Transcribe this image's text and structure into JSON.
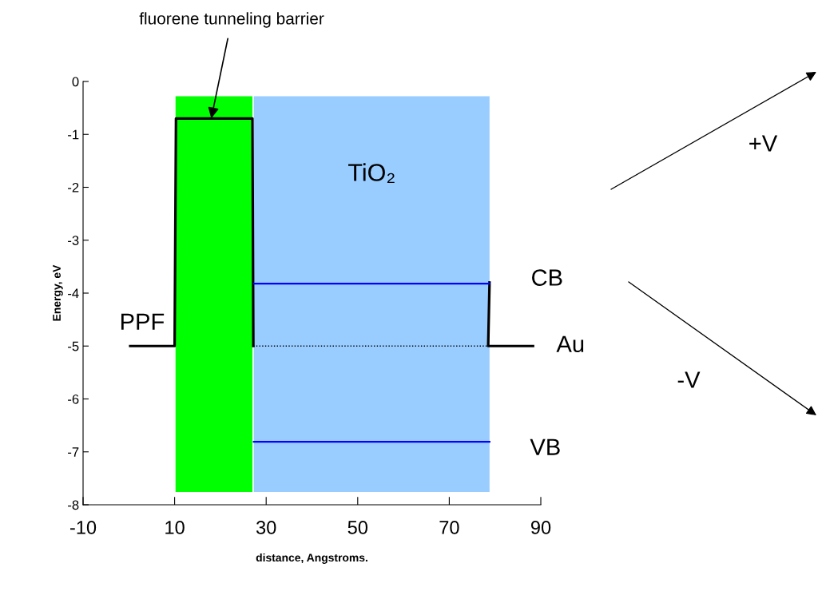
{
  "chart_data": {
    "type": "line",
    "xlabel": "distance, Angstroms.",
    "ylabel": "Energy, eV",
    "xlim": [
      -10,
      90
    ],
    "xticks": [
      -10,
      10,
      30,
      50,
      70,
      90
    ],
    "ylim": [
      -8,
      0
    ],
    "yticks": [
      -8,
      -7,
      -6,
      -5,
      -4,
      -3,
      -2,
      -1,
      0
    ],
    "grid": false,
    "legend": false,
    "marker": "none",
    "series": [
      {
        "color": "#000000",
        "x": [
          0.3,
          10,
          10.3,
          27,
          27.2
        ],
        "values": [
          -5,
          -5,
          -0.7,
          -0.7,
          -5
        ],
        "line_style": "solid"
      },
      {
        "color": "#000000",
        "x": [
          78.8,
          78.5,
          88.3
        ],
        "values": [
          -3.8,
          -5,
          -5
        ],
        "line_style": "solid"
      },
      {
        "color": "#000000",
        "x": [
          27.2,
          78.5
        ],
        "values": [
          -5,
          -5
        ],
        "line_style": "dotted"
      },
      {
        "color": "#0000ff",
        "x": [
          27.3,
          78.8
        ],
        "values": [
          -3.82,
          -3.82
        ],
        "line_style": "solid"
      },
      {
        "color": "#0000ff",
        "x": [
          27.3,
          78.8
        ],
        "values": [
          -6.81,
          -6.81
        ],
        "line_style": "solid"
      }
    ],
    "bands": [
      {
        "axis": "x",
        "from": 10.2,
        "to": 27.0,
        "color": "#00ff00"
      },
      {
        "axis": "x",
        "from": 27.3,
        "to": 78.8,
        "color": "#99ccff",
        "label": "TiO₂"
      }
    ],
    "annotations": [
      {
        "text": "fluorene tunneling barrier",
        "x": 18,
        "y": -0.7
      },
      {
        "text": "PPF",
        "x": 5,
        "y": -5
      },
      {
        "text": "CB",
        "x": 78.8,
        "y": -3.82
      },
      {
        "text": "Au",
        "x": 88.3,
        "y": -5
      },
      {
        "text": "VB",
        "x": 78.8,
        "y": -6.81
      },
      "+V",
      "-V"
    ]
  }
}
